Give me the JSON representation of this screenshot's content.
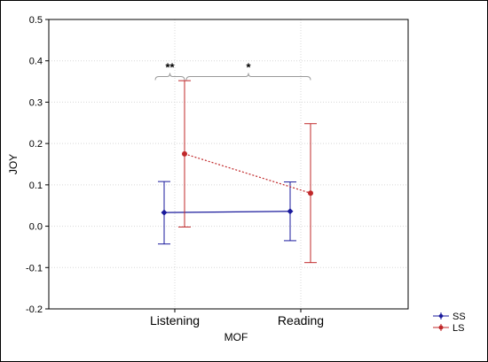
{
  "chart_data": {
    "type": "line",
    "title": "",
    "xlabel": "MOF",
    "ylabel": "JOY",
    "categories": [
      "Listening",
      "Reading"
    ],
    "ylim": [
      -0.2,
      0.5
    ],
    "yticks": [
      -0.2,
      -0.1,
      0.0,
      0.1,
      0.2,
      0.3,
      0.4,
      0.5
    ],
    "ytick_labels": [
      "-0.2",
      "-0.1",
      "0.0",
      "0.1",
      "0.2",
      "0.3",
      "0.4",
      "0.5"
    ],
    "grid": true,
    "legend_position": "bottom-right",
    "series": [
      {
        "name": "SS",
        "color": "#1a1a9c",
        "line_style": "solid",
        "marker": "diamond",
        "values": [
          0.033,
          0.036
        ],
        "err_low": [
          -0.043,
          -0.035
        ],
        "err_high": [
          0.108,
          0.107
        ]
      },
      {
        "name": "LS",
        "color": "#c0282a",
        "line_style": "dotted",
        "marker": "circle",
        "values": [
          0.175,
          0.08
        ],
        "err_low": [
          -0.002,
          -0.088
        ],
        "err_high": [
          0.352,
          0.248
        ]
      }
    ],
    "annotations": [
      {
        "text": "**",
        "between": [
          "SS Listening",
          "LS Listening"
        ],
        "y_value": 0.362
      },
      {
        "text": "*",
        "between": [
          "LS Listening",
          "LS Reading"
        ],
        "y_value": 0.362
      }
    ]
  }
}
